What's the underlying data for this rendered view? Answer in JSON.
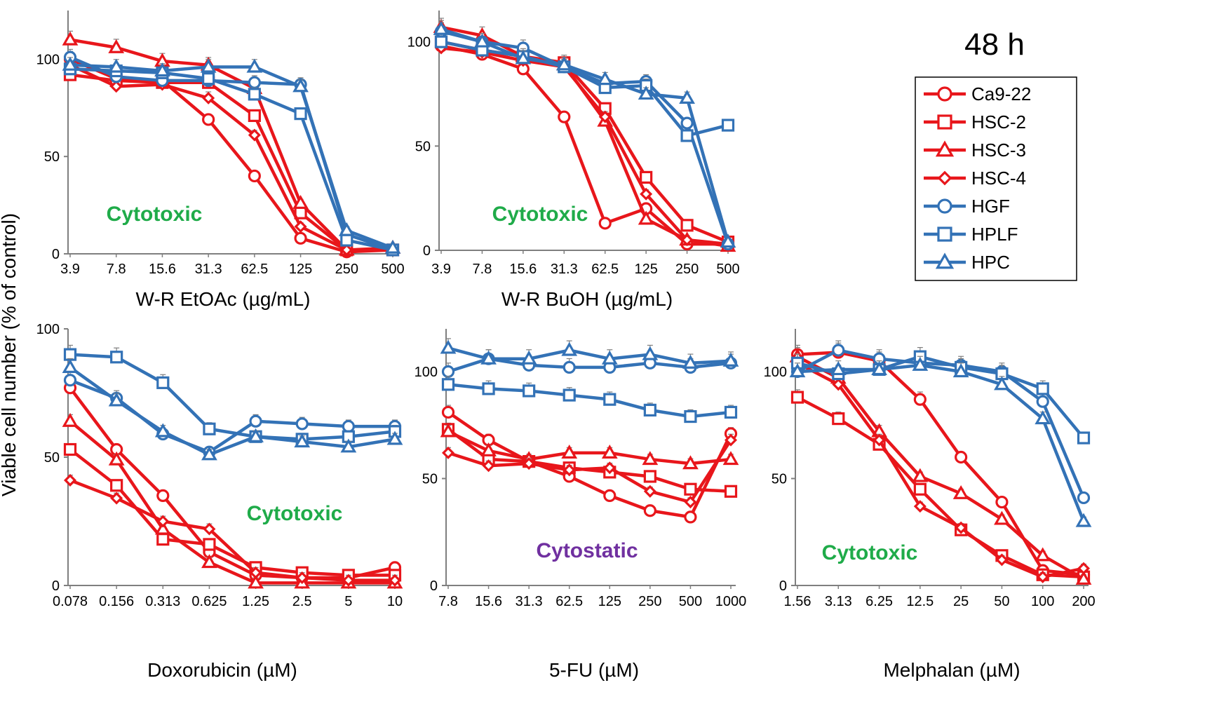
{
  "figure": {
    "time_label": "48 h",
    "y_axis_label": "Viable cell number (% of control)",
    "colors": {
      "cancer": "#e8161b",
      "normal": "#3372b6",
      "cytotoxic": "#1fab49",
      "cytostatic": "#7030a0",
      "axis": "#7f7f7f"
    },
    "legend": [
      {
        "name": "Ca9-22",
        "color": "#e8161b",
        "marker": "circle"
      },
      {
        "name": "HSC-2",
        "color": "#e8161b",
        "marker": "square"
      },
      {
        "name": "HSC-3",
        "color": "#e8161b",
        "marker": "triangle"
      },
      {
        "name": "HSC-4",
        "color": "#e8161b",
        "marker": "diamond"
      },
      {
        "name": "HGF",
        "color": "#3372b6",
        "marker": "circle"
      },
      {
        "name": "HPLF",
        "color": "#3372b6",
        "marker": "square"
      },
      {
        "name": "HPC",
        "color": "#3372b6",
        "marker": "triangle"
      }
    ]
  },
  "chart_data": [
    {
      "type": "line",
      "id": "etoac",
      "xlabel": "W-R EtOAc (µg/mL)",
      "categories": [
        "3.9",
        "7.8",
        "15.6",
        "31.3",
        "62.5",
        "125",
        "250",
        "500"
      ],
      "ylim": [
        0,
        125
      ],
      "yticks": [
        0,
        50,
        100
      ],
      "annotation": {
        "text": "Cytotoxic",
        "kind": "cytotoxic"
      },
      "series": [
        {
          "name": "Ca9-22",
          "values": [
            100,
            90,
            89,
            69,
            40,
            8,
            1,
            2
          ]
        },
        {
          "name": "HSC-2",
          "values": [
            92,
            89,
            88,
            88,
            71,
            21,
            2,
            2
          ]
        },
        {
          "name": "HSC-3",
          "values": [
            110,
            106,
            99,
            97,
            85,
            26,
            2,
            3
          ]
        },
        {
          "name": "HSC-4",
          "values": [
            97,
            86,
            87,
            80,
            61,
            14,
            2,
            2
          ]
        },
        {
          "name": "HGF",
          "values": [
            101,
            91,
            89,
            89,
            88,
            87,
            10,
            2
          ]
        },
        {
          "name": "HPLF",
          "values": [
            95,
            94,
            93,
            90,
            82,
            72,
            7,
            2
          ]
        },
        {
          "name": "HPC",
          "values": [
            97,
            96,
            94,
            96,
            96,
            86,
            12,
            3
          ]
        }
      ]
    },
    {
      "type": "line",
      "id": "buoh",
      "xlabel": "W-R BuOH (µg/mL)",
      "categories": [
        "3.9",
        "7.8",
        "15.6",
        "31.3",
        "62.5",
        "125",
        "250",
        "500"
      ],
      "ylim": [
        0,
        115
      ],
      "yticks": [
        0,
        50,
        100
      ],
      "annotation": {
        "text": "Cytotoxic",
        "kind": "cytotoxic"
      },
      "series": [
        {
          "name": "Ca9-22",
          "values": [
            98,
            94,
            87,
            64,
            13,
            20,
            3,
            3
          ]
        },
        {
          "name": "HSC-2",
          "values": [
            100,
            96,
            93,
            90,
            68,
            35,
            12,
            4
          ]
        },
        {
          "name": "HSC-3",
          "values": [
            107,
            103,
            93,
            89,
            62,
            15,
            5,
            2
          ]
        },
        {
          "name": "HSC-4",
          "values": [
            97,
            95,
            91,
            88,
            64,
            27,
            5,
            3
          ]
        },
        {
          "name": "HGF",
          "values": [
            105,
            100,
            97,
            88,
            80,
            81,
            61,
            3
          ]
        },
        {
          "name": "HPLF",
          "values": [
            100,
            96,
            93,
            88,
            78,
            79,
            55,
            60
          ]
        },
        {
          "name": "HPC",
          "values": [
            106,
            100,
            92,
            89,
            82,
            75,
            73,
            4
          ]
        }
      ]
    },
    {
      "type": "line",
      "id": "doxorubicin",
      "xlabel": "Doxorubicin (µM)",
      "categories": [
        "0.078",
        "0.156",
        "0.313",
        "0.625",
        "1.25",
        "2.5",
        "5",
        "10"
      ],
      "ylim": [
        0,
        100
      ],
      "yticks": [
        0,
        50,
        100
      ],
      "annotation": {
        "text": "Cytotoxic",
        "kind": "cytotoxic"
      },
      "series": [
        {
          "name": "Ca9-22",
          "values": [
            77,
            53,
            35,
            13,
            4,
            3,
            3,
            7
          ]
        },
        {
          "name": "HSC-2",
          "values": [
            53,
            39,
            18,
            16,
            7,
            5,
            4,
            4
          ]
        },
        {
          "name": "HSC-3",
          "values": [
            64,
            49,
            22,
            9,
            1,
            1,
            1,
            1
          ]
        },
        {
          "name": "HSC-4",
          "values": [
            41,
            34,
            25,
            22,
            5,
            3,
            2,
            2
          ]
        },
        {
          "name": "HGF",
          "values": [
            80,
            73,
            59,
            52,
            64,
            63,
            62,
            62
          ]
        },
        {
          "name": "HPLF",
          "values": [
            90,
            89,
            79,
            61,
            58,
            57,
            58,
            60
          ]
        },
        {
          "name": "HPC",
          "values": [
            85,
            72,
            60,
            51,
            58,
            56,
            54,
            57
          ]
        }
      ]
    },
    {
      "type": "line",
      "id": "fu",
      "xlabel": "5-FU (µM)",
      "categories": [
        "7.8",
        "15.6",
        "31.3",
        "62.5",
        "125",
        "250",
        "500",
        "1000"
      ],
      "ylim": [
        0,
        120
      ],
      "yticks": [
        0,
        50,
        100
      ],
      "annotation": {
        "text": "Cytostatic",
        "kind": "cytostatic"
      },
      "series": [
        {
          "name": "Ca9-22",
          "values": [
            81,
            68,
            58,
            51,
            42,
            35,
            32,
            71
          ]
        },
        {
          "name": "HSC-2",
          "values": [
            73,
            59,
            58,
            55,
            53,
            51,
            45,
            44
          ]
        },
        {
          "name": "HSC-3",
          "values": [
            72,
            63,
            59,
            62,
            62,
            59,
            57,
            59
          ]
        },
        {
          "name": "HSC-4",
          "values": [
            62,
            56,
            57,
            54,
            55,
            44,
            39,
            68
          ]
        },
        {
          "name": "HGF",
          "values": [
            100,
            106,
            103,
            102,
            102,
            104,
            102,
            104
          ]
        },
        {
          "name": "HPLF",
          "values": [
            94,
            92,
            91,
            89,
            87,
            82,
            79,
            81
          ]
        },
        {
          "name": "HPC",
          "values": [
            111,
            106,
            106,
            110,
            106,
            108,
            104,
            105
          ]
        }
      ]
    },
    {
      "type": "line",
      "id": "melphalan",
      "xlabel": "Melphalan (µM)",
      "categories": [
        "1.56",
        "3.13",
        "6.25",
        "12.5",
        "25",
        "50",
        "100",
        "200"
      ],
      "ylim": [
        0,
        120
      ],
      "yticks": [
        0,
        50,
        100
      ],
      "annotation": {
        "text": "Cytotoxic",
        "kind": "cytotoxic"
      },
      "series": [
        {
          "name": "Ca9-22",
          "values": [
            108,
            109,
            105,
            87,
            60,
            39,
            7,
            5
          ]
        },
        {
          "name": "HSC-2",
          "values": [
            88,
            78,
            66,
            45,
            26,
            14,
            5,
            4
          ]
        },
        {
          "name": "HSC-3",
          "values": [
            107,
            97,
            72,
            51,
            43,
            31,
            14,
            3
          ]
        },
        {
          "name": "HSC-4",
          "values": [
            104,
            94,
            68,
            37,
            27,
            12,
            4,
            8
          ]
        },
        {
          "name": "HGF",
          "values": [
            100,
            110,
            106,
            104,
            103,
            100,
            86,
            41
          ]
        },
        {
          "name": "HPLF",
          "values": [
            104,
            99,
            101,
            107,
            102,
            99,
            92,
            69
          ]
        },
        {
          "name": "HPC",
          "values": [
            100,
            101,
            101,
            103,
            100,
            94,
            78,
            30
          ]
        }
      ]
    }
  ]
}
